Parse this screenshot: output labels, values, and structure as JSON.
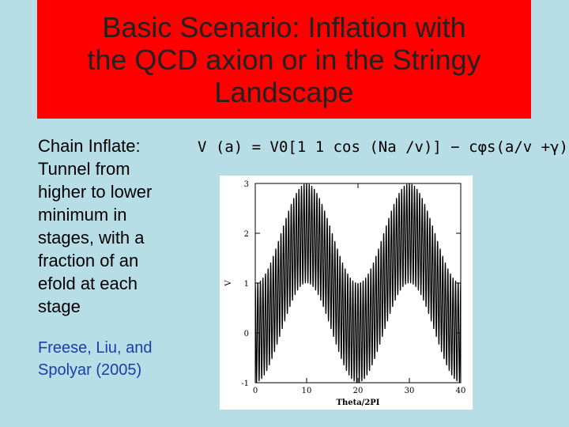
{
  "slide": {
    "title_lines": [
      "Basic Scenario: Inflation with",
      "the QCD axion or in the Stringy",
      "Landscape"
    ],
    "description_lines": [
      "Chain Inflate:",
      "Tunnel from",
      "higher to lower",
      "minimum in",
      "stages, with a",
      "fraction of an",
      "efold at each",
      "stage"
    ],
    "citation_lines": [
      "Freese, Liu, and",
      "Spolyar (2005)"
    ],
    "formula": "V (a) = V0[1 1 cos (Na /v)]  − cφs(a/v +γ)",
    "colors": {
      "background": "#b7dde6",
      "title_bg": "#ff0000",
      "citation": "#1b3fa6"
    }
  },
  "chart_data": {
    "type": "line",
    "xlabel": "Theta/2PI",
    "ylabel": "V",
    "xlim": [
      0,
      40
    ],
    "ylim": [
      -1,
      3
    ],
    "x_ticks": [
      "0",
      "10",
      "20",
      "30",
      "40"
    ],
    "y_ticks": [
      "-1",
      "0",
      "1",
      "2",
      "3"
    ],
    "function": {
      "N_oscillations_per_unit": 2,
      "fast_amplitude": 1,
      "slow_period": 20,
      "slow_amplitude": 1,
      "offset": 1
    }
  }
}
